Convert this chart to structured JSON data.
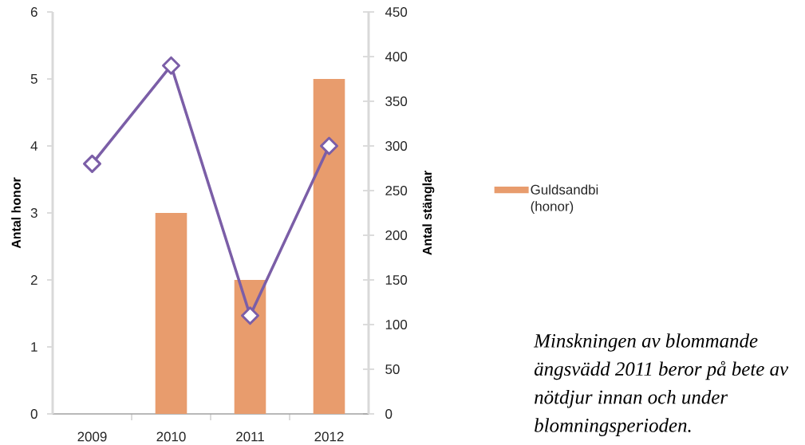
{
  "chart_data": {
    "type": "bar",
    "categories": [
      "2009",
      "2010",
      "2011",
      "2012"
    ],
    "series": [
      {
        "name": "Guldsandbi (honor)",
        "color": "#e89c6d",
        "values": [
          null,
          3,
          2,
          5
        ]
      },
      {
        "type": "line",
        "axis": "y2",
        "color": "#7b5ea7",
        "marker": "diamond",
        "values": [
          280,
          390,
          110,
          300
        ]
      }
    ],
    "ylim": [
      0,
      6
    ],
    "yticks": [
      0,
      1,
      2,
      3,
      4,
      5,
      6
    ],
    "y2lim": [
      0,
      450
    ],
    "y2ticks": [
      0,
      50,
      100,
      150,
      200,
      250,
      300,
      350,
      400,
      450
    ],
    "ylabel": "Antal honor",
    "y2label": "Antal stänglar",
    "legend": "right",
    "annotations": [
      "Minskningen av blommande ängsvädd 2011 beror på bete av nötdjur innan och under blomningsperioden."
    ]
  }
}
